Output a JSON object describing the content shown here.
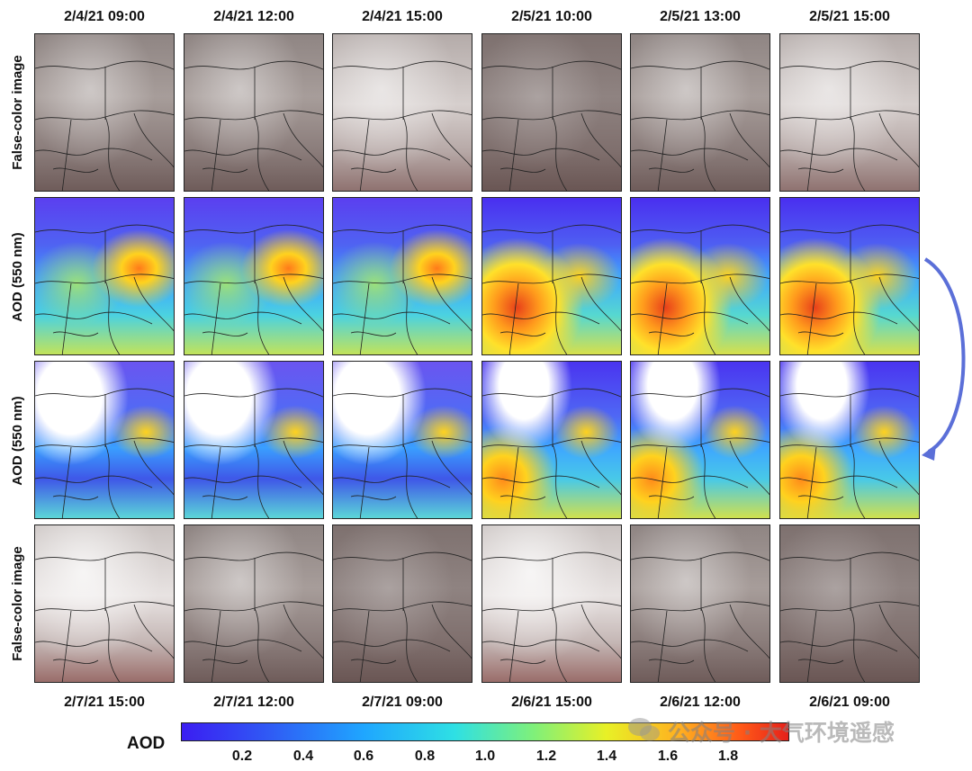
{
  "top_dates": [
    "2/4/21 09:00",
    "2/4/21 12:00",
    "2/4/21 15:00",
    "2/5/21 10:00",
    "2/5/21 13:00",
    "2/5/21 15:00"
  ],
  "bottom_dates": [
    "2/7/21 15:00",
    "2/7/21 12:00",
    "2/7/21 09:00",
    "2/6/21 15:00",
    "2/6/21 12:00",
    "2/6/21 09:00"
  ],
  "row_labels": [
    "False-color image",
    "AOD (550 nm)",
    "AOD (550 nm)",
    "False-color image"
  ],
  "colorbar": {
    "title": "AOD",
    "ticks": [
      "0.2",
      "0.4",
      "0.6",
      "0.8",
      "1.0",
      "1.2",
      "1.4",
      "1.6",
      "1.8"
    ],
    "colors": [
      "#3b1df2",
      "#1fa6ff",
      "#2ee0e4",
      "#7ff07a",
      "#e8f026",
      "#ffb020",
      "#e6201a"
    ]
  },
  "watermark": "公众号 · 大气环境遥感",
  "arrow_color": "#5b6fd8"
}
